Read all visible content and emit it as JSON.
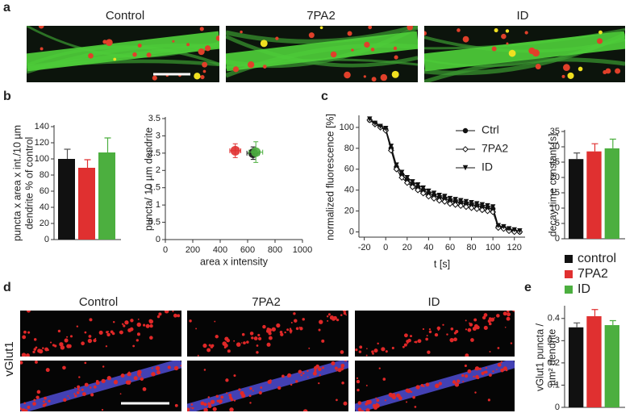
{
  "panels": [
    "a",
    "b",
    "c",
    "d",
    "e"
  ],
  "images_a": {
    "labels": [
      "Control",
      "7PA2",
      "ID"
    ]
  },
  "images_d": {
    "labels": [
      "Control",
      "7PA2",
      "ID"
    ],
    "row_label": "vGlut1"
  },
  "chart_data": [
    {
      "type": "bar",
      "ylabel": [
        "puncta x area x int./10 µm",
        "dendrite % of control"
      ],
      "values": [
        100,
        89,
        108
      ],
      "errors": [
        12,
        10,
        18
      ],
      "colors": [
        "#111111",
        "#e03030",
        "#4caf3f"
      ],
      "ylim": [
        0,
        140
      ],
      "yticks": [
        0,
        20,
        40,
        60,
        80,
        100,
        120,
        140
      ]
    },
    {
      "type": "scatter",
      "ylabel": [
        "puncta/ 10 µm dendrite"
      ],
      "xlabel": "area x intensity",
      "series": [
        {
          "color": "#e03030",
          "x": [
            510
          ],
          "y": [
            2.57
          ],
          "xerr": [
            40
          ],
          "yerr": [
            0.2
          ]
        },
        {
          "color": "#111111",
          "x": [
            640
          ],
          "y": [
            2.5
          ],
          "xerr": [
            45
          ],
          "yerr": [
            0.18
          ]
        },
        {
          "color": "#4caf3f",
          "x": [
            660
          ],
          "y": [
            2.53
          ],
          "xerr": [
            50
          ],
          "yerr": [
            0.3
          ]
        }
      ],
      "xlim": [
        0,
        1000
      ],
      "xticks": [
        0,
        200,
        400,
        600,
        800,
        1000
      ],
      "ylim": [
        0,
        3.5
      ],
      "yticks": [
        0,
        0.5,
        1,
        1.5,
        2,
        2.5,
        3,
        3.5
      ]
    },
    {
      "type": "line",
      "ylabel": [
        "normalized fluorescence [%]"
      ],
      "xlabel": "t [s]",
      "x": [
        -15,
        -10,
        -5,
        0,
        5,
        10,
        15,
        20,
        25,
        30,
        35,
        40,
        45,
        50,
        55,
        60,
        65,
        70,
        75,
        80,
        85,
        90,
        95,
        100,
        105,
        110,
        115,
        120,
        125
      ],
      "series": [
        {
          "name": "Ctrl",
          "color": "#111111",
          "marker": "circle",
          "values": [
            107,
            104,
            101,
            98,
            80,
            62,
            55,
            50,
            46,
            43,
            40,
            37,
            35,
            33,
            32,
            30,
            29,
            28,
            27,
            26,
            25,
            24,
            23,
            22,
            5,
            4,
            2,
            1,
            0
          ]
        },
        {
          "name": "7PA2",
          "color": "#111111",
          "marker": "open-diamond",
          "values": [
            107,
            103,
            100,
            97,
            78,
            60,
            52,
            47,
            43,
            40,
            37,
            34,
            32,
            30,
            29,
            27,
            26,
            25,
            24,
            23,
            22,
            21,
            20,
            19,
            4,
            3,
            1,
            0,
            0
          ]
        },
        {
          "name": "ID",
          "color": "#111111",
          "marker": "triangle-down",
          "values": [
            108,
            104,
            101,
            99,
            82,
            64,
            57,
            52,
            48,
            45,
            42,
            39,
            37,
            35,
            34,
            32,
            31,
            30,
            29,
            28,
            27,
            26,
            25,
            24,
            6,
            5,
            3,
            2,
            1
          ]
        }
      ],
      "xlim": [
        -25,
        130
      ],
      "xticks": [
        -20,
        0,
        20,
        40,
        60,
        80,
        100,
        120
      ],
      "ylim": [
        -5,
        110
      ],
      "yticks": [
        0,
        20,
        40,
        60,
        80,
        100
      ]
    },
    {
      "type": "bar",
      "ylabel": [
        "decay time constant [s]"
      ],
      "series": [
        {
          "name": "control",
          "color": "#111111",
          "values": [
            26
          ],
          "errors": [
            2
          ]
        },
        {
          "name": "7PA2",
          "color": "#e03030",
          "values": [
            28.5
          ],
          "errors": [
            2.5
          ]
        },
        {
          "name": "ID",
          "color": "#4caf3f",
          "values": [
            29.5
          ],
          "errors": [
            3
          ]
        }
      ],
      "ylim": [
        0,
        35
      ],
      "yticks": [
        0,
        5,
        10,
        15,
        20,
        25,
        30,
        35
      ]
    },
    {
      "type": "bar",
      "ylabel": [
        "vGlut1 puncta /",
        "µm² dendrite"
      ],
      "values": [
        0.36,
        0.41,
        0.37
      ],
      "errors": [
        0.02,
        0.03,
        0.02
      ],
      "colors": [
        "#111111",
        "#e03030",
        "#4caf3f"
      ],
      "ylim": [
        0,
        0.45
      ],
      "yticks": [
        0,
        0.1,
        0.2,
        0.3,
        0.4
      ]
    }
  ]
}
